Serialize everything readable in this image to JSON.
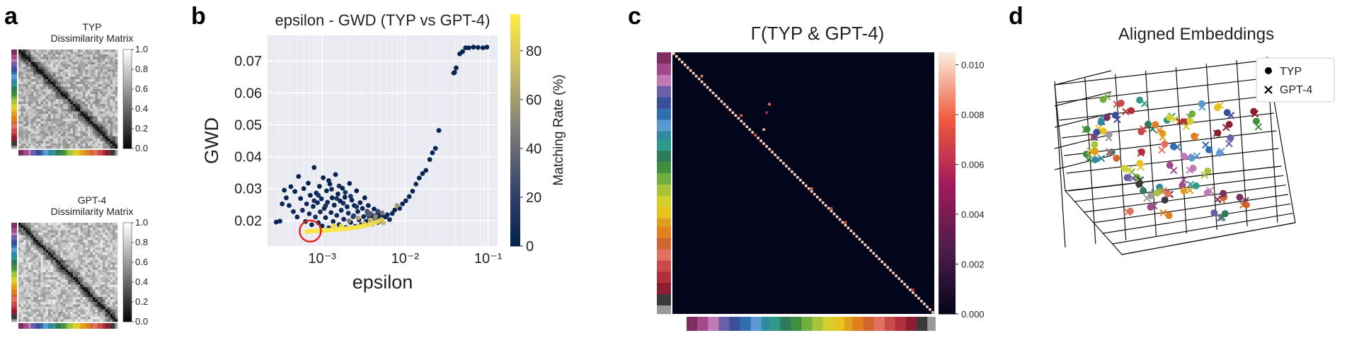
{
  "panels": {
    "a": {
      "letter": "a",
      "top_title_1": "TYP",
      "top_title_2": "Dissimilarity Matrix",
      "bottom_title_1": "GPT-4",
      "bottom_title_2": "Dissimilarity Matrix",
      "colorbar_ticks": [
        "1.0",
        "0.8",
        "0.6",
        "0.4",
        "0.2",
        "0.0"
      ]
    },
    "b": {
      "letter": "b"
    },
    "c": {
      "letter": "c",
      "title": "Γ(TYP & GPT-4)",
      "colorbar_ticks": [
        "0.010",
        "0.008",
        "0.006",
        "0.004",
        "0.002",
        "0.000"
      ]
    },
    "d": {
      "letter": "d",
      "title": "Aligned Embeddings",
      "legend": [
        {
          "label": "TYP",
          "marker": "circle"
        },
        {
          "label": "GPT-4",
          "marker": "cross"
        }
      ]
    }
  },
  "chart_data": [
    {
      "type": "heatmap",
      "title": "TYP Dissimilarity Matrix",
      "colorbar_range": [
        0.0,
        1.0
      ],
      "colormap": "gray"
    },
    {
      "type": "heatmap",
      "title": "GPT-4 Dissimilarity Matrix",
      "colorbar_range": [
        0.0,
        1.0
      ],
      "colormap": "gray"
    },
    {
      "type": "scatter",
      "title": "epsilon - GWD (TYP vs GPT-4)",
      "xlabel": "epsilon",
      "ylabel": "GWD",
      "xscale": "log",
      "xlim": [
        0.00022,
        0.13
      ],
      "ylim": [
        0.012,
        0.078
      ],
      "xticks": [
        0.001,
        0.01,
        0.1
      ],
      "xtick_labels": [
        "10⁻³",
        "10⁻²",
        "10⁻¹"
      ],
      "yticks": [
        0.02,
        0.03,
        0.04,
        0.05,
        0.06,
        0.07
      ],
      "ytick_labels": [
        "0.02",
        "0.03",
        "0.04",
        "0.05",
        "0.06",
        "0.07"
      ],
      "colorbar_label": "Matching Rate (%)",
      "colorbar_range": [
        0,
        95
      ],
      "colorbar_ticks": [
        0,
        20,
        40,
        60,
        80
      ],
      "colorbar_tick_labels": [
        "0",
        "20",
        "40",
        "60",
        "80"
      ],
      "highlight": {
        "x": 0.00072,
        "y": 0.0167,
        "color": "#e8231d"
      },
      "points": [
        {
          "x": 0.00028,
          "y": 0.0195,
          "rate": 2
        },
        {
          "x": 0.00031,
          "y": 0.0198,
          "rate": 3
        },
        {
          "x": 0.00033,
          "y": 0.0252,
          "rate": 4
        },
        {
          "x": 0.00035,
          "y": 0.0295,
          "rate": 2
        },
        {
          "x": 0.00037,
          "y": 0.0271,
          "rate": 5
        },
        {
          "x": 0.0004,
          "y": 0.0247,
          "rate": 3
        },
        {
          "x": 0.00042,
          "y": 0.0306,
          "rate": 2
        },
        {
          "x": 0.00045,
          "y": 0.0228,
          "rate": 6
        },
        {
          "x": 0.00047,
          "y": 0.0291,
          "rate": 3
        },
        {
          "x": 0.0005,
          "y": 0.0211,
          "rate": 5
        },
        {
          "x": 0.00052,
          "y": 0.0338,
          "rate": 4
        },
        {
          "x": 0.00055,
          "y": 0.0269,
          "rate": 2
        },
        {
          "x": 0.00058,
          "y": 0.0232,
          "rate": 7
        },
        {
          "x": 0.0006,
          "y": 0.03,
          "rate": 3
        },
        {
          "x": 0.00063,
          "y": 0.0197,
          "rate": 4
        },
        {
          "x": 0.00065,
          "y": 0.0252,
          "rate": 6
        },
        {
          "x": 0.00068,
          "y": 0.0317,
          "rate": 2
        },
        {
          "x": 0.0007,
          "y": 0.0221,
          "rate": 8
        },
        {
          "x": 0.00072,
          "y": 0.0279,
          "rate": 3
        },
        {
          "x": 0.00075,
          "y": 0.0187,
          "rate": 5
        },
        {
          "x": 0.00078,
          "y": 0.0244,
          "rate": 4
        },
        {
          "x": 0.0008,
          "y": 0.0366,
          "rate": 2
        },
        {
          "x": 0.00083,
          "y": 0.0211,
          "rate": 9
        },
        {
          "x": 0.00085,
          "y": 0.0286,
          "rate": 3
        },
        {
          "x": 0.00088,
          "y": 0.0256,
          "rate": 6
        },
        {
          "x": 0.0009,
          "y": 0.0193,
          "rate": 4
        },
        {
          "x": 0.00093,
          "y": 0.0307,
          "rate": 2
        },
        {
          "x": 0.00095,
          "y": 0.0227,
          "rate": 7
        },
        {
          "x": 0.00098,
          "y": 0.0268,
          "rate": 5
        },
        {
          "x": 0.001,
          "y": 0.0183,
          "rate": 3
        },
        {
          "x": 0.00103,
          "y": 0.0334,
          "rate": 2
        },
        {
          "x": 0.00106,
          "y": 0.0238,
          "rate": 6
        },
        {
          "x": 0.0011,
          "y": 0.0209,
          "rate": 4
        },
        {
          "x": 0.00113,
          "y": 0.0293,
          "rate": 3
        },
        {
          "x": 0.00116,
          "y": 0.0257,
          "rate": 8
        },
        {
          "x": 0.0012,
          "y": 0.0177,
          "rate": 5
        },
        {
          "x": 0.00124,
          "y": 0.0314,
          "rate": 2
        },
        {
          "x": 0.00128,
          "y": 0.0225,
          "rate": 7
        },
        {
          "x": 0.00132,
          "y": 0.0271,
          "rate": 3
        },
        {
          "x": 0.00136,
          "y": 0.0197,
          "rate": 5
        },
        {
          "x": 0.0014,
          "y": 0.0248,
          "rate": 4
        },
        {
          "x": 0.00145,
          "y": 0.0344,
          "rate": 2
        },
        {
          "x": 0.0015,
          "y": 0.0216,
          "rate": 9
        },
        {
          "x": 0.00155,
          "y": 0.0283,
          "rate": 3
        },
        {
          "x": 0.0016,
          "y": 0.0187,
          "rate": 6
        },
        {
          "x": 0.00165,
          "y": 0.0261,
          "rate": 4
        },
        {
          "x": 0.0017,
          "y": 0.0232,
          "rate": 5
        },
        {
          "x": 0.00176,
          "y": 0.0301,
          "rate": 2
        },
        {
          "x": 0.00182,
          "y": 0.0204,
          "rate": 8
        },
        {
          "x": 0.00188,
          "y": 0.0273,
          "rate": 3
        },
        {
          "x": 0.00194,
          "y": 0.0178,
          "rate": 6
        },
        {
          "x": 0.002,
          "y": 0.0243,
          "rate": 4
        },
        {
          "x": 0.00207,
          "y": 0.0223,
          "rate": 7
        },
        {
          "x": 0.00214,
          "y": 0.0316,
          "rate": 2
        },
        {
          "x": 0.00221,
          "y": 0.0194,
          "rate": 5
        },
        {
          "x": 0.00228,
          "y": 0.0264,
          "rate": 3
        },
        {
          "x": 0.00236,
          "y": 0.0212,
          "rate": 9
        },
        {
          "x": 0.00244,
          "y": 0.0247,
          "rate": 4
        },
        {
          "x": 0.00252,
          "y": 0.0182,
          "rate": 6
        },
        {
          "x": 0.0026,
          "y": 0.0293,
          "rate": 2
        },
        {
          "x": 0.00269,
          "y": 0.0228,
          "rate": 5
        },
        {
          "x": 0.00278,
          "y": 0.0202,
          "rate": 8
        },
        {
          "x": 0.00287,
          "y": 0.0256,
          "rate": 3
        },
        {
          "x": 0.00296,
          "y": 0.0187,
          "rate": 7
        },
        {
          "x": 0.00306,
          "y": 0.0238,
          "rate": 4
        },
        {
          "x": 0.00316,
          "y": 0.0212,
          "rate": 6
        },
        {
          "x": 0.00326,
          "y": 0.0271,
          "rate": 2
        },
        {
          "x": 0.00337,
          "y": 0.0197,
          "rate": 5
        },
        {
          "x": 0.00348,
          "y": 0.0229,
          "rate": 28
        },
        {
          "x": 0.0036,
          "y": 0.0247,
          "rate": 3
        },
        {
          "x": 0.00372,
          "y": 0.0207,
          "rate": 9
        },
        {
          "x": 0.00384,
          "y": 0.0222,
          "rate": 34
        },
        {
          "x": 0.00397,
          "y": 0.0189,
          "rate": 6
        },
        {
          "x": 0.0041,
          "y": 0.0214,
          "rate": 4
        },
        {
          "x": 0.00423,
          "y": 0.0236,
          "rate": 5
        },
        {
          "x": 0.00437,
          "y": 0.0202,
          "rate": 38
        },
        {
          "x": 0.00451,
          "y": 0.0217,
          "rate": 7
        },
        {
          "x": 0.00466,
          "y": 0.0194,
          "rate": 3
        },
        {
          "x": 0.00481,
          "y": 0.0207,
          "rate": 6
        },
        {
          "x": 0.00497,
          "y": 0.0221,
          "rate": 4
        },
        {
          "x": 0.00513,
          "y": 0.0199,
          "rate": 8
        },
        {
          "x": 0.0053,
          "y": 0.0213,
          "rate": 5
        },
        {
          "x": 0.0055,
          "y": 0.0192,
          "rate": 72
        },
        {
          "x": 0.0058,
          "y": 0.0211,
          "rate": 6
        },
        {
          "x": 0.0061,
          "y": 0.0218,
          "rate": 4
        },
        {
          "x": 0.0065,
          "y": 0.0203,
          "rate": 7
        },
        {
          "x": 0.007,
          "y": 0.0222,
          "rate": 5
        },
        {
          "x": 0.0075,
          "y": 0.0233,
          "rate": 3
        },
        {
          "x": 0.008,
          "y": 0.0247,
          "rate": 60
        },
        {
          "x": 0.0086,
          "y": 0.0238,
          "rate": 6
        },
        {
          "x": 0.0093,
          "y": 0.0252,
          "rate": 4
        },
        {
          "x": 0.0102,
          "y": 0.0262,
          "rate": 5
        },
        {
          "x": 0.0112,
          "y": 0.0275,
          "rate": 3
        },
        {
          "x": 0.0123,
          "y": 0.0292,
          "rate": 4
        },
        {
          "x": 0.0135,
          "y": 0.0314,
          "rate": 6
        },
        {
          "x": 0.0148,
          "y": 0.0333,
          "rate": 3
        },
        {
          "x": 0.0162,
          "y": 0.0347,
          "rate": 4
        },
        {
          "x": 0.0178,
          "y": 0.0357,
          "rate": 5
        },
        {
          "x": 0.0198,
          "y": 0.0391,
          "rate": 3
        },
        {
          "x": 0.0213,
          "y": 0.0412,
          "rate": 4
        },
        {
          "x": 0.0232,
          "y": 0.0426,
          "rate": 5
        },
        {
          "x": 0.0255,
          "y": 0.0482,
          "rate": 3
        },
        {
          "x": 0.0385,
          "y": 0.0662,
          "rate": 4
        },
        {
          "x": 0.0395,
          "y": 0.0664,
          "rate": 5
        },
        {
          "x": 0.0412,
          "y": 0.0678,
          "rate": 3
        },
        {
          "x": 0.0455,
          "y": 0.0722,
          "rate": 4
        },
        {
          "x": 0.0492,
          "y": 0.0729,
          "rate": 3
        },
        {
          "x": 0.0535,
          "y": 0.0741,
          "rate": 5
        },
        {
          "x": 0.0585,
          "y": 0.0741,
          "rate": 4
        },
        {
          "x": 0.0665,
          "y": 0.0743,
          "rate": 3
        },
        {
          "x": 0.0755,
          "y": 0.0742,
          "rate": 4
        },
        {
          "x": 0.0865,
          "y": 0.0741,
          "rate": 5
        },
        {
          "x": 0.0965,
          "y": 0.0743,
          "rate": 4
        },
        {
          "x": 0.0008,
          "y": 0.0262,
          "rate": 10
        },
        {
          "x": 0.0009,
          "y": 0.0279,
          "rate": 12
        },
        {
          "x": 0.0011,
          "y": 0.0246,
          "rate": 11
        },
        {
          "x": 0.0013,
          "y": 0.0298,
          "rate": 9
        },
        {
          "x": 0.0015,
          "y": 0.0269,
          "rate": 13
        },
        {
          "x": 0.0018,
          "y": 0.0254,
          "rate": 10
        },
        {
          "x": 0.0022,
          "y": 0.0276,
          "rate": 12
        },
        {
          "x": 0.0026,
          "y": 0.0243,
          "rate": 11
        },
        {
          "x": 0.0012,
          "y": 0.0325,
          "rate": 8
        },
        {
          "x": 0.0016,
          "y": 0.0308,
          "rate": 9
        },
        {
          "x": 0.0019,
          "y": 0.0288,
          "rate": 10
        },
        {
          "x": 0.00065,
          "y": 0.0165,
          "rate": 93
        },
        {
          "x": 0.0007,
          "y": 0.0166,
          "rate": 92
        },
        {
          "x": 0.00075,
          "y": 0.0167,
          "rate": 93
        },
        {
          "x": 0.0008,
          "y": 0.0167,
          "rate": 94
        },
        {
          "x": 0.00086,
          "y": 0.0168,
          "rate": 93
        },
        {
          "x": 0.00093,
          "y": 0.0168,
          "rate": 92
        },
        {
          "x": 0.001,
          "y": 0.0169,
          "rate": 94
        },
        {
          "x": 0.00108,
          "y": 0.0169,
          "rate": 93
        },
        {
          "x": 0.00116,
          "y": 0.017,
          "rate": 93
        },
        {
          "x": 0.00125,
          "y": 0.017,
          "rate": 92
        },
        {
          "x": 0.00135,
          "y": 0.0171,
          "rate": 94
        },
        {
          "x": 0.00145,
          "y": 0.0172,
          "rate": 93
        },
        {
          "x": 0.00157,
          "y": 0.0172,
          "rate": 93
        },
        {
          "x": 0.0017,
          "y": 0.0173,
          "rate": 92
        },
        {
          "x": 0.00183,
          "y": 0.0174,
          "rate": 93
        },
        {
          "x": 0.00198,
          "y": 0.0175,
          "rate": 92
        },
        {
          "x": 0.00214,
          "y": 0.0176,
          "rate": 92
        },
        {
          "x": 0.0023,
          "y": 0.0177,
          "rate": 91
        },
        {
          "x": 0.0025,
          "y": 0.0178,
          "rate": 92
        },
        {
          "x": 0.0027,
          "y": 0.018,
          "rate": 90
        },
        {
          "x": 0.0029,
          "y": 0.0181,
          "rate": 91
        },
        {
          "x": 0.00315,
          "y": 0.0183,
          "rate": 90
        },
        {
          "x": 0.0034,
          "y": 0.0185,
          "rate": 90
        },
        {
          "x": 0.00365,
          "y": 0.0187,
          "rate": 89
        },
        {
          "x": 0.0039,
          "y": 0.0189,
          "rate": 88
        },
        {
          "x": 0.0042,
          "y": 0.0192,
          "rate": 87
        },
        {
          "x": 0.0045,
          "y": 0.0195,
          "rate": 85
        },
        {
          "x": 0.0048,
          "y": 0.0198,
          "rate": 82
        },
        {
          "x": 0.0052,
          "y": 0.0203,
          "rate": 78
        },
        {
          "x": 0.0032,
          "y": 0.0191,
          "rate": 75
        },
        {
          "x": 0.0038,
          "y": 0.0202,
          "rate": 70
        },
        {
          "x": 0.0027,
          "y": 0.0208,
          "rate": 65
        },
        {
          "x": 0.0044,
          "y": 0.0213,
          "rate": 55
        },
        {
          "x": 0.0021,
          "y": 0.0199,
          "rate": 50
        },
        {
          "x": 0.0053,
          "y": 0.0224,
          "rate": 45
        },
        {
          "x": 0.0035,
          "y": 0.0218,
          "rate": 35
        },
        {
          "x": 0.0047,
          "y": 0.0229,
          "rate": 25
        },
        {
          "x": 0.0024,
          "y": 0.0215,
          "rate": 18
        },
        {
          "x": 0.0017,
          "y": 0.0183,
          "rate": 84
        },
        {
          "x": 0.00138,
          "y": 0.0184,
          "rate": 86
        }
      ]
    },
    {
      "type": "heatmap",
      "title": "Γ(TYP & GPT-4)",
      "colorbar_range": [
        0.0,
        0.0105
      ],
      "colormap": "rocket",
      "colorbar_ticks": [
        0.0,
        0.002,
        0.004,
        0.006,
        0.008,
        0.01
      ]
    },
    {
      "type": "scatter",
      "title": "Aligned Embeddings",
      "series": [
        {
          "name": "TYP",
          "marker": "circle"
        },
        {
          "name": "GPT-4",
          "marker": "cross"
        }
      ]
    }
  ]
}
